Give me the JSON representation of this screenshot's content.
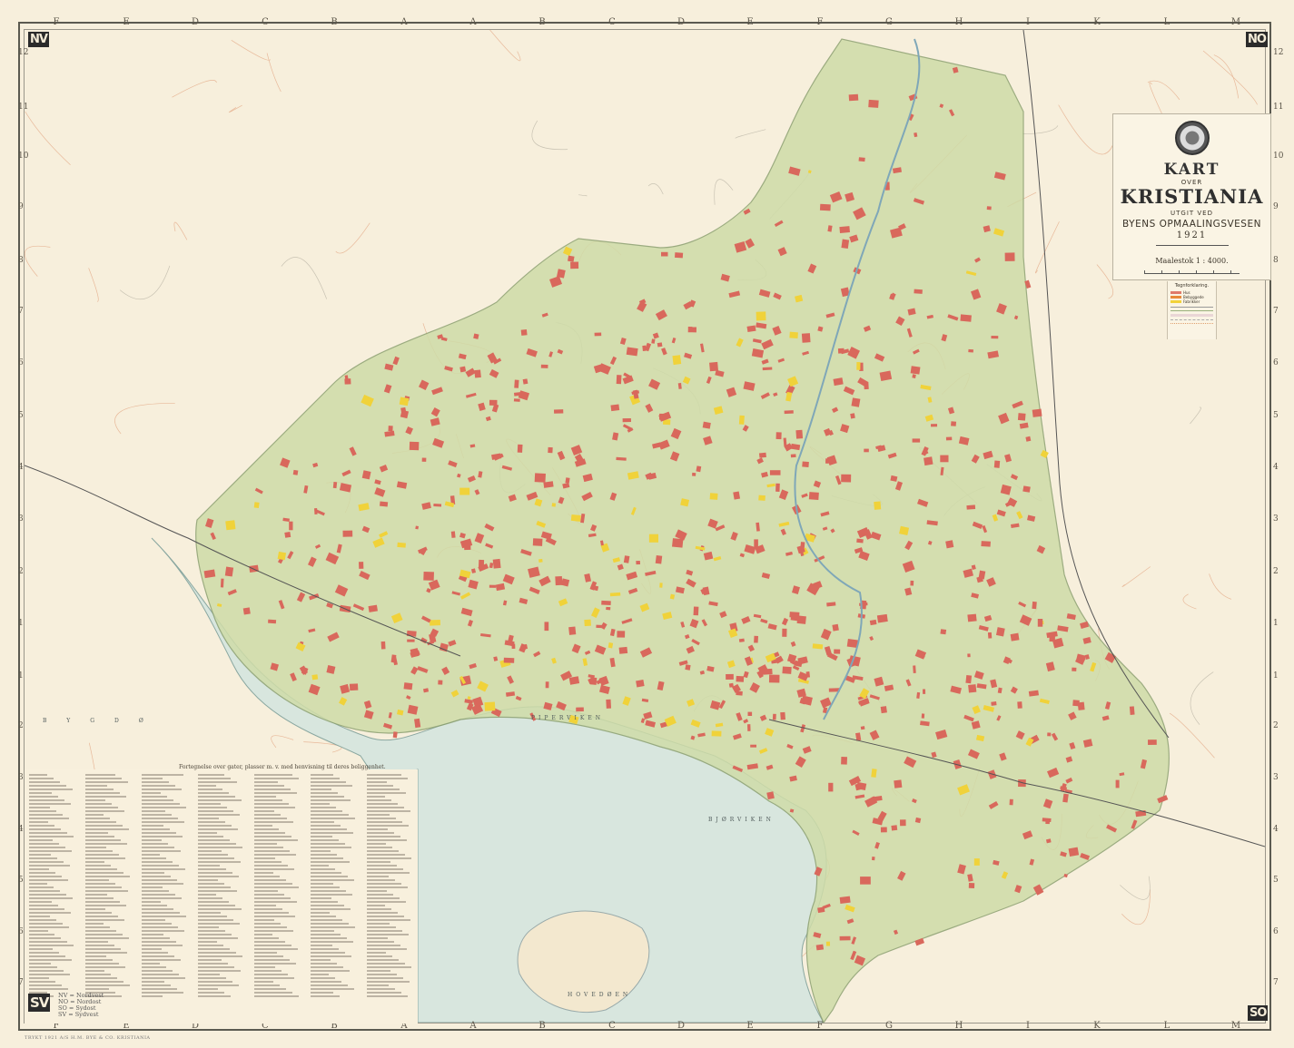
{
  "title": {
    "kart": "KART",
    "over": "OVER",
    "city": "KRISTIANIA",
    "utgit": "UTGIT VED",
    "publisher": "BYENS OPMAALINGSVESEN",
    "year": "1921",
    "scale": "Maalestok   1 : 4000."
  },
  "legend": {
    "title": "Tegnforklaring.",
    "items": [
      {
        "label": "Hus",
        "color": "#e07a6a"
      },
      {
        "label": "Bebyggede",
        "color": "#e8893a"
      },
      {
        "label": "Fabrikker",
        "color": "#f2d23a"
      }
    ]
  },
  "corners": {
    "nw": "NV",
    "ne": "NO",
    "sw": "SV",
    "se": "SO"
  },
  "compass_key": [
    "NV = Nordvest",
    "NO = Nordost",
    "SO = Sydost",
    "SV = Sydvest"
  ],
  "column_letters": [
    "F",
    "E",
    "D",
    "C",
    "B",
    "A",
    "A",
    "B",
    "C",
    "D",
    "E",
    "F",
    "G",
    "H",
    "I",
    "K",
    "L",
    "M"
  ],
  "row_numbers": [
    "12",
    "11",
    "10",
    "9",
    "8",
    "7",
    "6",
    "5",
    "4",
    "3",
    "2",
    "1",
    "1",
    "2",
    "3",
    "4",
    "5",
    "6",
    "7"
  ],
  "index_header": "Fortegnelse over gater, plasser m. v. med henvisning til deres beliggenhet.",
  "imprint": "TRYKT 1921  A/S H.M. BYE & CO. KRISTIANIA",
  "place_names": {
    "piperviken": "PIPERVIKEN",
    "bjorviken": "BJØRVIKEN",
    "hovedoen": "HOVEDØEN",
    "bygdo": "BYGDØ"
  },
  "colors": {
    "paper": "#f7efdc",
    "water": "#d8e6de",
    "park": "#cfdca8",
    "buildings": "#d9685c",
    "factories": "#f0d23a"
  }
}
